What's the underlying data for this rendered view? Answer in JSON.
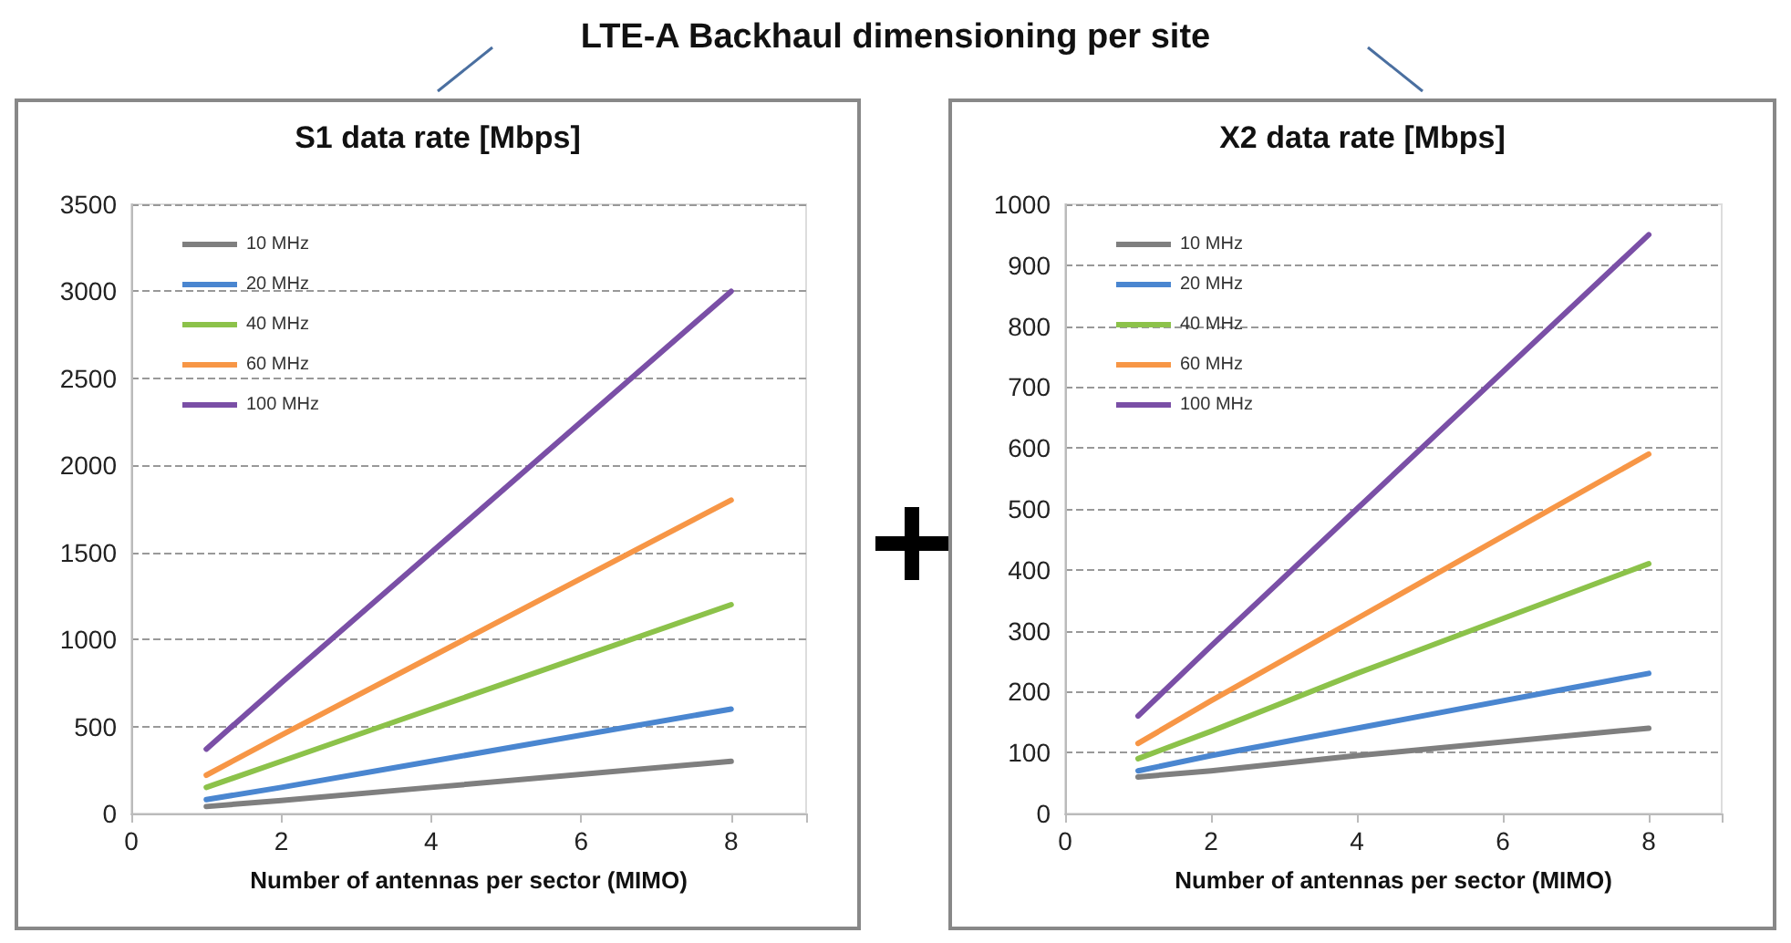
{
  "chart_data": [
    {
      "type": "line",
      "title": "S1 data rate [Mbps]",
      "xlabel": "Number of antennas per sector (MIMO)",
      "annotations": [
        "LTE-A Backhaul dimensioning per site"
      ],
      "x": [
        1,
        2,
        4,
        8
      ],
      "xlim": [
        0,
        9
      ],
      "xticks": [
        0,
        2,
        4,
        6,
        8,
        {
          "value": 9,
          "label": null
        }
      ],
      "ylim": [
        0,
        3500
      ],
      "yticks": [
        0,
        500,
        1000,
        1500,
        2000,
        2500,
        3000,
        3500
      ],
      "grid": "y",
      "legend": "top left",
      "marker": "none",
      "line_style": "solid",
      "series": [
        {
          "name": "10 MHz",
          "color": "#7f7f7f",
          "values": [
            40,
            75,
            150,
            300
          ]
        },
        {
          "name": "20 MHz",
          "color": "#4a86d0",
          "values": [
            80,
            150,
            300,
            600
          ]
        },
        {
          "name": "40 MHz",
          "color": "#8cc24a",
          "values": [
            150,
            300,
            600,
            1200
          ]
        },
        {
          "name": "60 MHz",
          "color": "#f79646",
          "values": [
            220,
            450,
            900,
            1800
          ]
        },
        {
          "name": "100 MHz",
          "color": "#7a4fa6",
          "values": [
            370,
            750,
            1500,
            3000
          ]
        }
      ]
    },
    {
      "type": "line",
      "title": "X2 data rate [Mbps]",
      "xlabel": "Number of antennas per sector (MIMO)",
      "x": [
        1,
        2,
        4,
        8
      ],
      "xlim": [
        0,
        9
      ],
      "xticks": [
        0,
        2,
        4,
        6,
        8,
        {
          "value": 9,
          "label": null
        }
      ],
      "ylim": [
        0,
        1000
      ],
      "yticks": [
        0,
        100,
        200,
        300,
        400,
        500,
        600,
        700,
        800,
        900,
        1000
      ],
      "grid": "y",
      "legend": "top left",
      "marker": "none",
      "line_style": "solid",
      "series": [
        {
          "name": "10 MHz",
          "color": "#7f7f7f",
          "values": [
            60,
            70,
            95,
            140
          ]
        },
        {
          "name": "20 MHz",
          "color": "#4a86d0",
          "values": [
            70,
            95,
            140,
            230
          ]
        },
        {
          "name": "40 MHz",
          "color": "#8cc24a",
          "values": [
            90,
            135,
            230,
            410
          ]
        },
        {
          "name": "60 MHz",
          "color": "#f79646",
          "values": [
            115,
            185,
            320,
            590
          ]
        },
        {
          "name": "100 MHz",
          "color": "#7a4fa6",
          "values": [
            160,
            275,
            500,
            950
          ]
        }
      ]
    }
  ]
}
